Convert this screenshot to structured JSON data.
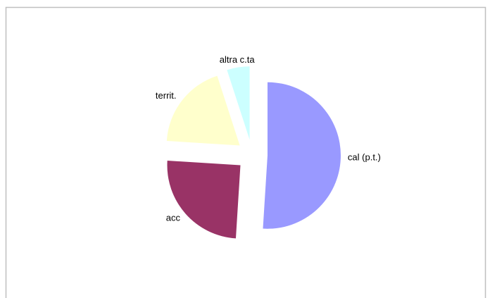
{
  "chart_data": {
    "type": "pie",
    "categories": [
      "cal (p.t.)",
      "acc",
      "territ.",
      "altra c.ta"
    ],
    "values": [
      51,
      25,
      19,
      5
    ],
    "colors": [
      "#9999ff",
      "#993366",
      "#ffffcc",
      "#ccffff"
    ],
    "exploded": true
  }
}
